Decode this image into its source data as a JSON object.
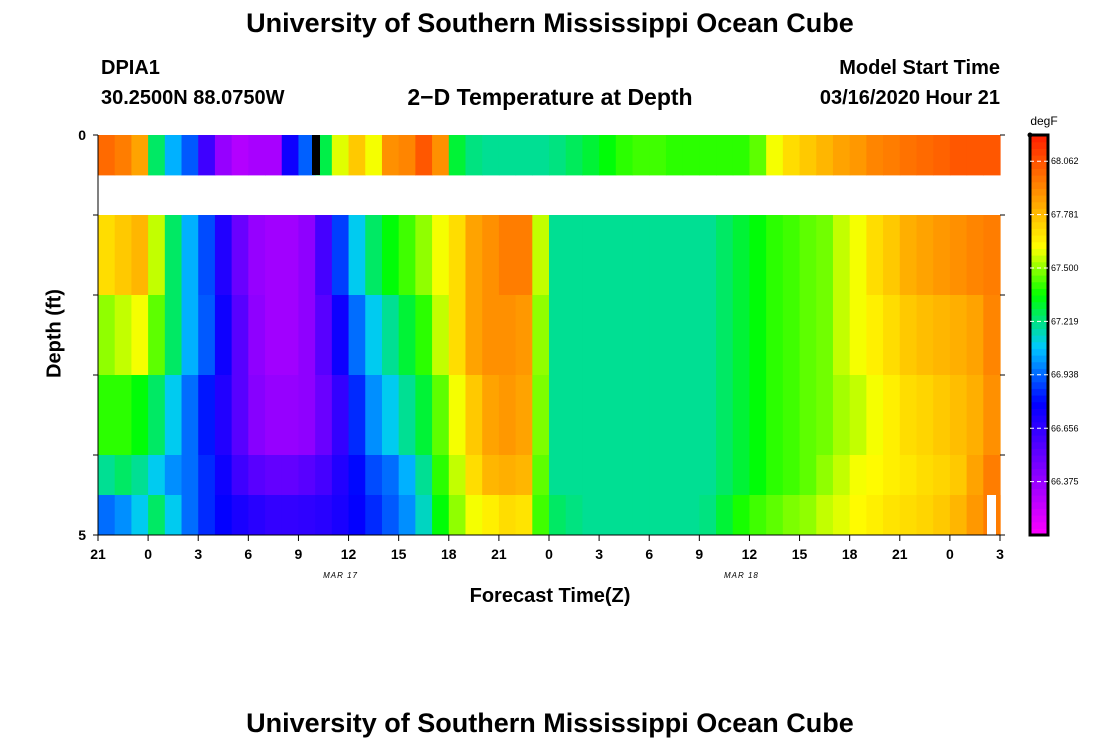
{
  "header": {
    "title": "University of Southern Mississippi Ocean Cube",
    "station": "DPIA1",
    "coords": "30.2500N 88.0750W",
    "subtitle": "2−D Temperature at Depth",
    "model_label": "Model Start Time",
    "model_time": "03/16/2020 Hour 21"
  },
  "footer": {
    "title": "University of Southern Mississippi Ocean Cube"
  },
  "chart_data": {
    "type": "heatmap",
    "title": "2−D Temperature at Depth",
    "xlabel": "Forecast Time(Z)",
    "ylabel": "Depth (ft)",
    "x_ticks": [
      "21",
      "0",
      "3",
      "6",
      "9",
      "12",
      "15",
      "18",
      "21",
      "0",
      "3",
      "6",
      "9",
      "12",
      "15",
      "18",
      "21",
      "0",
      "3"
    ],
    "date_labels": [
      {
        "text": "MAR 17",
        "tick_index": 5
      },
      {
        "text": "MAR 18",
        "tick_index": 13
      }
    ],
    "y_ticks": [
      "0",
      "5"
    ],
    "y_range": [
      0,
      5
    ],
    "x_range_hours": [
      0,
      54
    ],
    "colorbar": {
      "units": "degF",
      "ticks": [
        "68.062",
        "67.781",
        "67.500",
        "67.219",
        "66.938",
        "66.656",
        "66.375"
      ],
      "range": [
        66.094,
        68.2
      ]
    },
    "depth_rows": [
      {
        "depth_ft": 0.5,
        "hourly_degF": [
          68.0,
          67.95,
          67.85,
          67.25,
          67.05,
          66.92,
          66.62,
          66.38,
          66.3,
          66.33,
          66.33,
          66.75,
          66.93,
          67.28,
          67.58,
          67.75,
          67.6,
          67.9,
          67.93,
          68.05,
          67.9,
          67.3,
          67.22,
          67.2,
          67.2,
          67.2,
          67.2,
          67.22,
          67.26,
          67.3,
          67.35,
          67.4,
          67.42,
          67.42,
          67.4,
          67.4,
          67.4,
          67.4,
          67.4,
          67.45,
          67.6,
          67.7,
          67.75,
          67.8,
          67.85,
          67.88,
          67.93,
          67.95,
          67.98,
          68.0,
          68.02,
          68.05,
          68.05,
          68.05,
          68.05
        ]
      },
      {
        "depth_ft": 1.5,
        "hourly_degF": [
          67.7,
          67.75,
          67.8,
          67.55,
          67.25,
          67.05,
          66.9,
          66.7,
          66.5,
          66.38,
          66.35,
          66.35,
          66.4,
          66.6,
          66.88,
          67.1,
          67.25,
          67.35,
          67.42,
          67.5,
          67.6,
          67.7,
          67.85,
          67.9,
          67.95,
          67.95,
          67.55,
          67.2,
          67.2,
          67.2,
          67.2,
          67.2,
          67.2,
          67.2,
          67.2,
          67.2,
          67.2,
          67.25,
          67.3,
          67.35,
          67.4,
          67.42,
          67.45,
          67.47,
          67.55,
          67.6,
          67.7,
          67.75,
          67.82,
          67.85,
          67.88,
          67.9,
          67.93,
          67.95,
          67.98
        ]
      },
      {
        "depth_ft": 2.5,
        "hourly_degF": [
          67.5,
          67.55,
          67.6,
          67.45,
          67.25,
          67.05,
          66.92,
          66.75,
          66.55,
          66.4,
          66.35,
          66.35,
          66.4,
          66.55,
          66.75,
          66.95,
          67.1,
          67.2,
          67.3,
          67.4,
          67.55,
          67.7,
          67.85,
          67.9,
          67.9,
          67.88,
          67.5,
          67.2,
          67.2,
          67.2,
          67.2,
          67.2,
          67.2,
          67.2,
          67.2,
          67.2,
          67.2,
          67.25,
          67.3,
          67.35,
          67.4,
          67.42,
          67.45,
          67.47,
          67.55,
          67.6,
          67.65,
          67.7,
          67.75,
          67.78,
          67.8,
          67.82,
          67.85,
          67.93,
          68.0
        ]
      },
      {
        "depth_ft": 3.5,
        "hourly_degF": [
          67.4,
          67.4,
          67.35,
          67.25,
          67.1,
          66.95,
          66.82,
          66.7,
          66.55,
          66.42,
          66.38,
          66.38,
          66.4,
          66.5,
          66.65,
          66.85,
          67.0,
          67.1,
          67.2,
          67.3,
          67.45,
          67.6,
          67.75,
          67.85,
          67.88,
          67.85,
          67.48,
          67.2,
          67.2,
          67.2,
          67.2,
          67.2,
          67.2,
          67.2,
          67.2,
          67.2,
          67.2,
          67.25,
          67.3,
          67.35,
          67.4,
          67.42,
          67.45,
          67.47,
          67.52,
          67.55,
          67.6,
          67.65,
          67.7,
          67.72,
          67.75,
          67.78,
          67.82,
          67.9,
          68.0
        ]
      },
      {
        "depth_ft": 4.5,
        "hourly_degF": [
          67.2,
          67.25,
          67.2,
          67.1,
          67.0,
          66.95,
          66.85,
          66.75,
          66.62,
          66.55,
          66.52,
          66.52,
          66.55,
          66.6,
          66.7,
          66.8,
          66.9,
          66.95,
          67.05,
          67.2,
          67.4,
          67.55,
          67.7,
          67.8,
          67.82,
          67.8,
          67.45,
          67.2,
          67.2,
          67.2,
          67.2,
          67.2,
          67.2,
          67.2,
          67.2,
          67.2,
          67.2,
          67.25,
          67.3,
          67.35,
          67.4,
          67.42,
          67.45,
          67.5,
          67.55,
          67.6,
          67.62,
          67.65,
          67.67,
          67.7,
          67.72,
          67.75,
          67.85,
          67.95,
          68.05
        ]
      },
      {
        "depth_ft": 5.0,
        "hourly_degF": [
          66.95,
          67.0,
          67.1,
          67.25,
          67.1,
          66.95,
          66.85,
          66.78,
          66.72,
          66.68,
          66.65,
          66.65,
          66.66,
          66.68,
          66.72,
          66.78,
          66.85,
          66.92,
          67.0,
          67.15,
          67.35,
          67.5,
          67.6,
          67.65,
          67.7,
          67.68,
          67.42,
          67.25,
          67.22,
          67.2,
          67.2,
          67.2,
          67.2,
          67.2,
          67.2,
          67.2,
          67.22,
          67.3,
          67.38,
          67.42,
          67.45,
          67.48,
          67.5,
          67.55,
          67.58,
          67.62,
          67.65,
          67.68,
          67.7,
          67.72,
          67.75,
          67.8,
          67.88,
          67.95,
          68.05
        ]
      }
    ]
  }
}
